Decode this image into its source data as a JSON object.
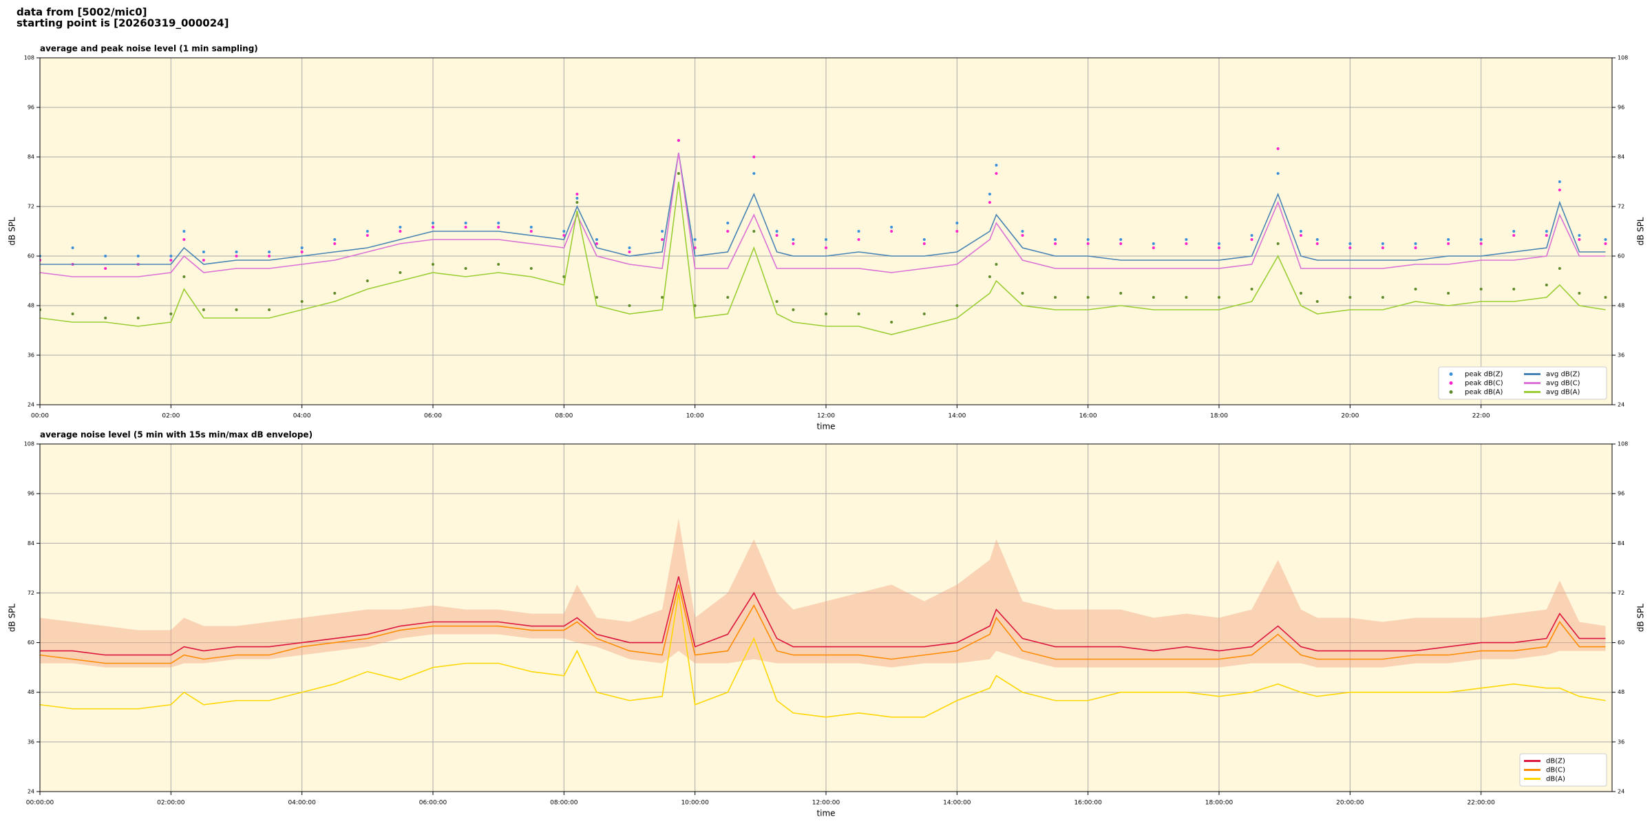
{
  "header": {
    "line1": "data from [5002/mic0]",
    "line2": "starting point is [20260319_000024]"
  },
  "chart_data": [
    {
      "type": "line",
      "title": "average and peak noise level (1 min sampling)",
      "xlabel": "time",
      "ylabel": "dB SPL",
      "x": [
        0,
        0.5,
        1,
        1.5,
        2,
        2.2,
        2.5,
        3,
        3.5,
        4,
        4.5,
        5,
        5.5,
        6,
        6.5,
        7,
        7.5,
        8,
        8.2,
        8.5,
        9,
        9.5,
        9.75,
        10,
        10.5,
        10.9,
        11.25,
        11.5,
        12,
        12.5,
        13,
        13.5,
        14,
        14.5,
        14.6,
        15,
        15.5,
        16,
        16.5,
        17,
        17.5,
        18,
        18.5,
        18.9,
        19.25,
        19.5,
        20,
        20.5,
        21,
        21.5,
        22,
        22.5,
        23,
        23.2,
        23.5,
        23.9
      ],
      "xlim": [
        0,
        24
      ],
      "xticks": [
        {
          "value": 0,
          "label": "00:00"
        },
        {
          "value": 2,
          "label": "02:00"
        },
        {
          "value": 4,
          "label": "04:00"
        },
        {
          "value": 6,
          "label": "06:00"
        },
        {
          "value": 8,
          "label": "08:00"
        },
        {
          "value": 10,
          "label": "10:00"
        },
        {
          "value": 12,
          "label": "12:00"
        },
        {
          "value": 14,
          "label": "14:00"
        },
        {
          "value": 16,
          "label": "16:00"
        },
        {
          "value": 18,
          "label": "18:00"
        },
        {
          "value": 20,
          "label": "20:00"
        },
        {
          "value": 22,
          "label": "22:00"
        }
      ],
      "ylim": [
        24,
        108
      ],
      "yticks": [
        24,
        36,
        48,
        60,
        72,
        84,
        96,
        108
      ],
      "grid": true,
      "legend": "lower right",
      "series": [
        {
          "name": "peak dB(Z)",
          "type": "scatter",
          "color": "#3b8fd9",
          "values": [
            60,
            62,
            60,
            60,
            60,
            66,
            61,
            61,
            61,
            62,
            64,
            66,
            67,
            68,
            68,
            68,
            67,
            66,
            74,
            64,
            62,
            66,
            88,
            64,
            68,
            80,
            66,
            64,
            64,
            66,
            67,
            64,
            68,
            75,
            82,
            66,
            64,
            64,
            64,
            63,
            64,
            63,
            65,
            80,
            66,
            64,
            63,
            63,
            63,
            64,
            64,
            66,
            66,
            78,
            65,
            64
          ]
        },
        {
          "name": "peak dB(C)",
          "type": "scatter",
          "color": "#ff22cc",
          "values": [
            59,
            58,
            57,
            58,
            59,
            64,
            59,
            60,
            60,
            61,
            63,
            65,
            66,
            67,
            67,
            67,
            66,
            65,
            75,
            63,
            61,
            64,
            88,
            62,
            66,
            84,
            65,
            63,
            62,
            64,
            66,
            63,
            66,
            73,
            80,
            65,
            63,
            63,
            63,
            62,
            63,
            62,
            64,
            86,
            65,
            63,
            62,
            62,
            62,
            63,
            63,
            65,
            65,
            76,
            64,
            63
          ]
        },
        {
          "name": "peak dB(A)",
          "type": "scatter",
          "color": "#5f8a2a",
          "values": [
            47,
            46,
            45,
            45,
            46,
            55,
            47,
            47,
            47,
            49,
            51,
            54,
            56,
            58,
            57,
            58,
            57,
            55,
            73,
            50,
            48,
            50,
            80,
            48,
            50,
            66,
            49,
            47,
            46,
            46,
            44,
            46,
            48,
            55,
            58,
            51,
            50,
            50,
            51,
            50,
            50,
            50,
            52,
            63,
            51,
            49,
            50,
            50,
            52,
            51,
            52,
            52,
            53,
            57,
            51,
            50
          ]
        },
        {
          "name": "avg dB(Z)",
          "type": "line",
          "color": "#4682b4",
          "values": [
            58,
            58,
            58,
            58,
            58,
            62,
            58,
            59,
            59,
            60,
            61,
            62,
            64,
            66,
            66,
            66,
            65,
            64,
            72,
            62,
            60,
            61,
            85,
            60,
            61,
            75,
            61,
            60,
            60,
            61,
            60,
            60,
            61,
            66,
            70,
            62,
            60,
            60,
            59,
            59,
            59,
            59,
            60,
            75,
            60,
            59,
            59,
            59,
            59,
            60,
            60,
            61,
            62,
            73,
            61,
            61
          ]
        },
        {
          "name": "avg dB(C)",
          "type": "line",
          "color": "#da70d6",
          "values": [
            56,
            55,
            55,
            55,
            56,
            60,
            56,
            57,
            57,
            58,
            59,
            61,
            63,
            64,
            64,
            64,
            63,
            62,
            70,
            60,
            58,
            57,
            85,
            57,
            57,
            70,
            57,
            57,
            57,
            57,
            56,
            57,
            58,
            64,
            68,
            59,
            57,
            57,
            57,
            57,
            57,
            57,
            58,
            73,
            57,
            57,
            57,
            57,
            58,
            58,
            59,
            59,
            60,
            70,
            60,
            60
          ]
        },
        {
          "name": "avg dB(A)",
          "type": "line",
          "color": "#9acd32",
          "values": [
            45,
            44,
            44,
            43,
            44,
            52,
            45,
            45,
            45,
            47,
            49,
            52,
            54,
            56,
            55,
            56,
            55,
            53,
            71,
            48,
            46,
            47,
            78,
            45,
            46,
            62,
            46,
            44,
            43,
            43,
            41,
            43,
            45,
            51,
            54,
            48,
            47,
            47,
            48,
            47,
            47,
            47,
            49,
            60,
            48,
            46,
            47,
            47,
            49,
            48,
            49,
            49,
            50,
            53,
            48,
            47
          ]
        }
      ]
    },
    {
      "type": "line",
      "title": "average noise level (5 min with 15s min/max dB envelope)",
      "xlabel": "time",
      "ylabel": "dB SPL",
      "x": [
        0,
        0.5,
        1,
        1.5,
        2,
        2.2,
        2.5,
        3,
        3.5,
        4,
        4.5,
        5,
        5.5,
        6,
        6.5,
        7,
        7.5,
        8,
        8.2,
        8.5,
        9,
        9.5,
        9.75,
        10,
        10.5,
        10.9,
        11.25,
        11.5,
        12,
        12.5,
        13,
        13.5,
        14,
        14.5,
        14.6,
        15,
        15.5,
        16,
        16.5,
        17,
        17.5,
        18,
        18.5,
        18.9,
        19.25,
        19.5,
        20,
        20.5,
        21,
        21.5,
        22,
        22.5,
        23,
        23.2,
        23.5,
        23.9
      ],
      "xlim": [
        0,
        24
      ],
      "xticks": [
        {
          "value": 0,
          "label": "00:00:00"
        },
        {
          "value": 2,
          "label": "02:00:00"
        },
        {
          "value": 4,
          "label": "04:00:00"
        },
        {
          "value": 6,
          "label": "06:00:00"
        },
        {
          "value": 8,
          "label": "08:00:00"
        },
        {
          "value": 10,
          "label": "10:00:00"
        },
        {
          "value": 12,
          "label": "12:00:00"
        },
        {
          "value": 14,
          "label": "14:00:00"
        },
        {
          "value": 16,
          "label": "16:00:00"
        },
        {
          "value": 18,
          "label": "18:00:00"
        },
        {
          "value": 20,
          "label": "20:00:00"
        },
        {
          "value": 22,
          "label": "22:00:00"
        }
      ],
      "ylim": [
        24,
        108
      ],
      "yticks": [
        24,
        36,
        48,
        60,
        72,
        84,
        96,
        108
      ],
      "grid": true,
      "legend": "lower right",
      "band": {
        "color": "#f4a582",
        "upper": [
          66,
          65,
          64,
          63,
          63,
          66,
          64,
          64,
          65,
          66,
          67,
          68,
          68,
          69,
          68,
          68,
          67,
          67,
          74,
          66,
          65,
          68,
          90,
          66,
          72,
          85,
          72,
          68,
          70,
          72,
          74,
          70,
          74,
          80,
          85,
          70,
          68,
          68,
          68,
          66,
          67,
          66,
          68,
          80,
          68,
          66,
          66,
          65,
          66,
          66,
          66,
          67,
          68,
          75,
          65,
          64
        ],
        "lower": [
          55,
          55,
          54,
          54,
          54,
          55,
          55,
          56,
          56,
          57,
          58,
          59,
          61,
          62,
          62,
          62,
          61,
          61,
          60,
          59,
          56,
          55,
          58,
          55,
          55,
          56,
          55,
          55,
          55,
          55,
          54,
          55,
          55,
          56,
          58,
          56,
          54,
          54,
          54,
          54,
          54,
          54,
          55,
          55,
          55,
          54,
          54,
          54,
          55,
          55,
          56,
          56,
          57,
          58,
          58,
          58
        ]
      },
      "series": [
        {
          "name": "dB(Z)",
          "type": "line",
          "color": "#dc143c",
          "values": [
            58,
            58,
            57,
            57,
            57,
            59,
            58,
            59,
            59,
            60,
            61,
            62,
            64,
            65,
            65,
            65,
            64,
            64,
            66,
            62,
            60,
            60,
            76,
            59,
            62,
            72,
            61,
            59,
            59,
            59,
            59,
            59,
            60,
            64,
            68,
            61,
            59,
            59,
            59,
            58,
            59,
            58,
            59,
            64,
            59,
            58,
            58,
            58,
            58,
            59,
            60,
            60,
            61,
            67,
            61,
            61
          ]
        },
        {
          "name": "dB(C)",
          "type": "line",
          "color": "#ff8c00",
          "values": [
            57,
            56,
            55,
            55,
            55,
            57,
            56,
            57,
            57,
            59,
            60,
            61,
            63,
            64,
            64,
            64,
            63,
            63,
            65,
            61,
            58,
            57,
            74,
            57,
            58,
            69,
            58,
            57,
            57,
            57,
            56,
            57,
            58,
            62,
            66,
            58,
            56,
            56,
            56,
            56,
            56,
            56,
            57,
            62,
            57,
            56,
            56,
            56,
            57,
            57,
            58,
            58,
            59,
            65,
            59,
            59
          ]
        },
        {
          "name": "dB(A)",
          "type": "line",
          "color": "#ffd700",
          "values": [
            45,
            44,
            44,
            44,
            45,
            48,
            45,
            46,
            46,
            48,
            50,
            53,
            51,
            54,
            55,
            55,
            53,
            52,
            58,
            48,
            46,
            47,
            72,
            45,
            48,
            61,
            46,
            43,
            42,
            43,
            42,
            42,
            46,
            49,
            52,
            48,
            46,
            46,
            48,
            48,
            48,
            47,
            48,
            50,
            48,
            47,
            48,
            48,
            48,
            48,
            49,
            50,
            49,
            49,
            47,
            46
          ]
        }
      ]
    }
  ]
}
